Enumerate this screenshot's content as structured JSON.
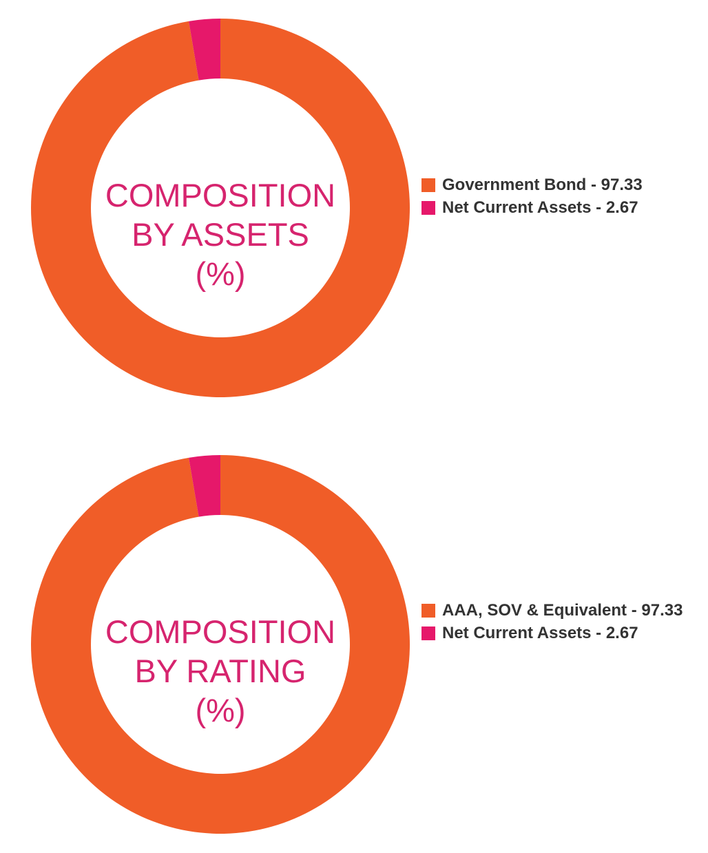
{
  "colors": {
    "orange": "#f05d28",
    "pink": "#e6186a",
    "title": "#d6246e",
    "legend_text": "#333333"
  },
  "chart_data": [
    {
      "type": "pie",
      "center_title": [
        "COMPOSITION",
        "BY ASSETS",
        "(%)"
      ],
      "slices": [
        {
          "label": "Government Bond - 97.33",
          "value": 97.33,
          "color": "#f05d28"
        },
        {
          "label": "Net Current Assets - 2.67",
          "value": 2.67,
          "color": "#e6186a"
        }
      ],
      "legend_position": "right"
    },
    {
      "type": "pie",
      "center_title": [
        "COMPOSITION",
        "BY RATING",
        "(%)"
      ],
      "slices": [
        {
          "label": "AAA, SOV & Equivalent - 97.33",
          "value": 97.33,
          "color": "#f05d28"
        },
        {
          "label": "Net Current Assets - 2.67",
          "value": 2.67,
          "color": "#e6186a"
        }
      ],
      "legend_position": "right"
    }
  ]
}
